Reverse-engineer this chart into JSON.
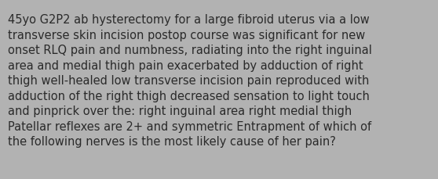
{
  "text": "45yo G2P2 ab hysterectomy for a large fibroid uterus via a low\ntransverse skin incision postop course was significant for new\nonset RLQ pain and numbness, radiating into the right inguinal\narea and medial thigh pain exacerbated by adduction of right\nthigh well-healed low transverse incision pain reproduced with\nadduction of the right thigh decreased sensation to light touch\nand pinprick over the: right inguinal area right medial thigh\nPatellar reflexes are 2+ and symmetric Entrapment of which of\nthe following nerves is the most likely cause of her pain?",
  "background_color": "#b2b2b2",
  "text_color": "#2a2a2a",
  "font_size": 10.5,
  "fig_width": 5.58,
  "fig_height": 2.3,
  "dpi": 100
}
